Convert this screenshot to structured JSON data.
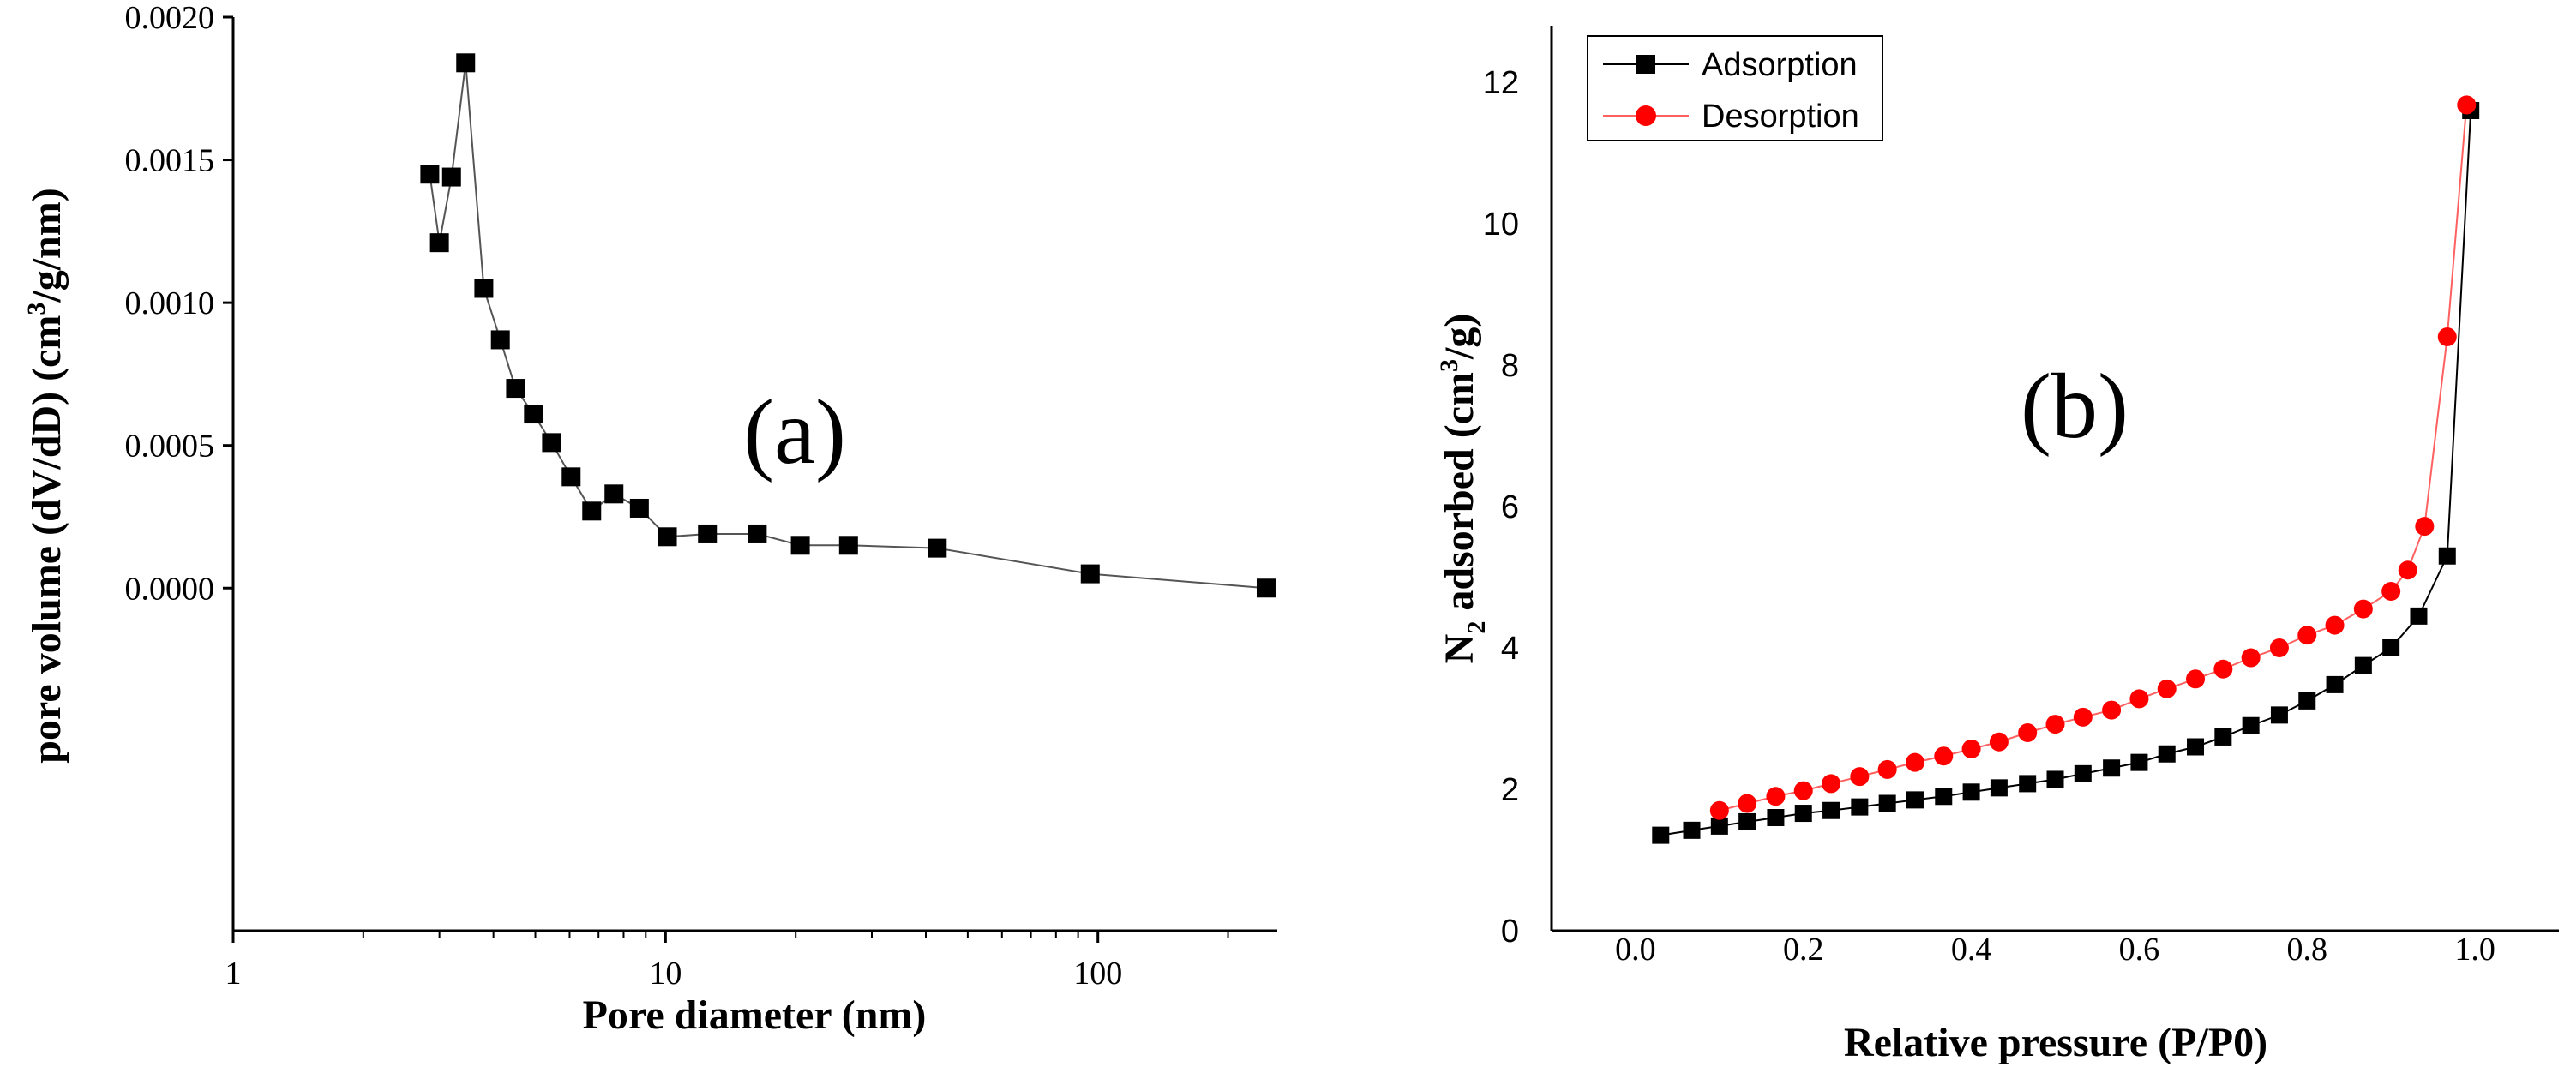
{
  "chart_data": [
    {
      "type": "line",
      "panel_label": "(a)",
      "title": "",
      "xlabel": "Pore diameter (nm)",
      "ylabel_main": "pore volume (dV/dD) (cm",
      "ylabel_sup": "3",
      "ylabel_tail": "/g/nm)",
      "xscale": "log",
      "xlim": [
        1,
        260
      ],
      "ylim": [
        -0.0012,
        0.002
      ],
      "xticks": [
        1,
        10,
        100
      ],
      "xtick_labels": [
        "1",
        "10",
        "100"
      ],
      "yticks": [
        0,
        0.0005,
        0.001,
        0.0015,
        0.002
      ],
      "ytick_labels": [
        "0.0000",
        "0.0005",
        "0.0010",
        "0.0015",
        "0.0020"
      ],
      "series": [
        {
          "name": "pore volume",
          "marker": "square",
          "color": "#000000",
          "x": [
            2.85,
            3.0,
            3.2,
            3.45,
            3.8,
            4.15,
            4.5,
            4.95,
            5.45,
            6.05,
            6.75,
            7.6,
            8.7,
            10.1,
            12.5,
            16.3,
            20.5,
            26.5,
            42.5,
            96,
            245
          ],
          "y": [
            0.00145,
            0.00121,
            0.00144,
            0.00184,
            0.00105,
            0.00087,
            0.0007,
            0.00061,
            0.00051,
            0.00039,
            0.00027,
            0.00033,
            0.00028,
            0.00018,
            0.00019,
            0.00019,
            0.00015,
            0.00015,
            0.00014,
            5e-05,
            0.0
          ]
        }
      ]
    },
    {
      "type": "line",
      "panel_label": "(b)",
      "title": "",
      "xlabel": "Relative pressure (P/P0)",
      "ylabel_pre": "N",
      "ylabel_sub": "2",
      "ylabel_mid": " adsorbed (cm",
      "ylabel_sup": "3",
      "ylabel_tail": "/g)",
      "xlim": [
        -0.1,
        1.1
      ],
      "ylim": [
        0,
        12.8
      ],
      "xticks": [
        0,
        0.2,
        0.4,
        0.6,
        0.8,
        1.0
      ],
      "xtick_labels": [
        "0.0",
        "0.2",
        "0.4",
        "0.6",
        "0.8",
        "1.0"
      ],
      "yticks": [
        0,
        2,
        4,
        6,
        8,
        10,
        12
      ],
      "ytick_labels": [
        "0",
        "2",
        "4",
        "6",
        "8",
        "10",
        "12"
      ],
      "legend_position": "top-left",
      "series": [
        {
          "name": "Adsorption",
          "marker": "square",
          "color": "#000000",
          "line_color": "#000000",
          "x": [
            0.03,
            0.067,
            0.1,
            0.133,
            0.167,
            0.2,
            0.233,
            0.267,
            0.3,
            0.333,
            0.367,
            0.4,
            0.433,
            0.467,
            0.5,
            0.533,
            0.567,
            0.6,
            0.633,
            0.667,
            0.7,
            0.733,
            0.767,
            0.8,
            0.833,
            0.867,
            0.9,
            0.933,
            0.967,
            0.995
          ],
          "y": [
            1.35,
            1.42,
            1.48,
            1.54,
            1.6,
            1.66,
            1.7,
            1.75,
            1.8,
            1.85,
            1.9,
            1.96,
            2.02,
            2.08,
            2.14,
            2.22,
            2.3,
            2.38,
            2.5,
            2.6,
            2.74,
            2.9,
            3.05,
            3.25,
            3.48,
            3.75,
            4.0,
            4.45,
            5.3,
            11.6
          ]
        },
        {
          "name": "Desorption",
          "marker": "circle",
          "color": "#ff0000",
          "line_color": "#ff6060",
          "x": [
            0.1,
            0.133,
            0.167,
            0.2,
            0.233,
            0.267,
            0.3,
            0.333,
            0.367,
            0.4,
            0.433,
            0.467,
            0.5,
            0.533,
            0.567,
            0.6,
            0.633,
            0.667,
            0.7,
            0.733,
            0.767,
            0.8,
            0.833,
            0.867,
            0.9,
            0.92,
            0.94,
            0.967,
            0.99
          ],
          "y": [
            1.7,
            1.8,
            1.9,
            1.98,
            2.08,
            2.18,
            2.28,
            2.38,
            2.47,
            2.57,
            2.67,
            2.8,
            2.92,
            3.02,
            3.12,
            3.28,
            3.42,
            3.56,
            3.7,
            3.86,
            4.0,
            4.18,
            4.32,
            4.55,
            4.8,
            5.1,
            5.72,
            8.4,
            11.68
          ]
        }
      ]
    }
  ]
}
